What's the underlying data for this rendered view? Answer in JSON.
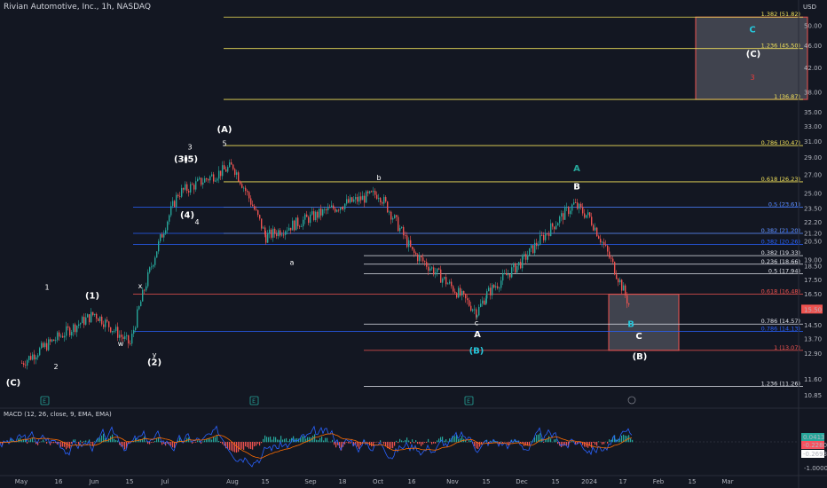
{
  "header": {
    "title": "Rivian Automotive, Inc., 1h, NASDAQ",
    "currency": "USD"
  },
  "macd": {
    "label": "MACD (12, 26, close, 9, EMA, EMA)",
    "badges": [
      {
        "text": "0.0413",
        "color": "#26a69a"
      },
      {
        "text": "-0.2280",
        "color": "#f7525f"
      },
      {
        "text": "-0.2693",
        "color": "#ffffff"
      }
    ]
  },
  "colors": {
    "background": "#131722",
    "up": "#26a69a",
    "down": "#ef5350",
    "fib_yellow": "#f0e05a",
    "fib_blue": "#2962ff",
    "fib_white": "#e0e3eb",
    "fib_red": "#ef5350",
    "wave_cyan": "#26c6da",
    "wave_red": "#ef3b3b",
    "macd_line": "#2962ff",
    "signal_line": "#ff6d00"
  },
  "chart_data": {
    "type": "line",
    "title": "Rivian Automotive, Inc., 1h, NASDAQ",
    "y_axis": {
      "ticks": [
        10.85,
        11.6,
        12.9,
        13.7,
        14.5,
        15.5,
        16.5,
        17.5,
        18.5,
        19.0,
        20.5,
        21.2,
        22.2,
        23.5,
        25.0,
        27.0,
        29.0,
        31.0,
        33.0,
        35.0,
        38.0,
        42.0,
        46.0,
        50.0
      ],
      "scale": "log",
      "ylim": [
        10.6,
        54
      ]
    },
    "x_axis": {
      "ticks": [
        "May",
        "16",
        "Jun",
        "15",
        "Jul",
        "Aug",
        "15",
        "Sep",
        "18",
        "Oct",
        "16",
        "Nov",
        "15",
        "Dec",
        "15",
        "2024",
        "17",
        "Feb",
        "15",
        "Mar"
      ]
    },
    "last_price": 15.5,
    "price_path": [
      {
        "x": "May",
        "y": 12.4
      },
      {
        "x": "Jun",
        "y": 15.2
      },
      {
        "x": "Jun 15",
        "y": 13.4
      },
      {
        "x": "Jul",
        "y": 25.0
      },
      {
        "x": "Aug",
        "y": 28.0
      },
      {
        "x": "Aug 15",
        "y": 20.9
      },
      {
        "x": "Sep 18",
        "y": 23.9
      },
      {
        "x": "Oct",
        "y": 25.0
      },
      {
        "x": "Oct 16",
        "y": 19.6
      },
      {
        "x": "Nov",
        "y": 15.3
      },
      {
        "x": "Nov 15",
        "y": 16.5
      },
      {
        "x": "Dec",
        "y": 18.9
      },
      {
        "x": "Dec 15",
        "y": 23.9
      },
      {
        "x": "2024",
        "y": 22.6
      },
      {
        "x": "Jan 17",
        "y": 15.5
      }
    ],
    "fib_levels": [
      {
        "label": "1.382 (51.82)",
        "value": 51.82,
        "color": "#f0e05a",
        "group": "top"
      },
      {
        "label": "1.236 (45.50)",
        "value": 45.5,
        "color": "#f0e05a",
        "group": "top"
      },
      {
        "label": "1 (36.87)",
        "value": 36.87,
        "color": "#f0e05a",
        "group": "top"
      },
      {
        "label": "0.786 (30.47)",
        "value": 30.47,
        "color": "#f0e05a",
        "group": "top"
      },
      {
        "label": "0.618 (26.23)",
        "value": 26.23,
        "color": "#f0e05a",
        "group": "top"
      },
      {
        "label": "0.5 (23.61)",
        "value": 23.61,
        "color": "#f0e05a",
        "group": "top"
      },
      {
        "label": "0.382 (21.20)",
        "value": 21.2,
        "color": "#f0e05a",
        "group": "top"
      },
      {
        "label": "0.5 (23.61)",
        "value": 23.61,
        "color": "#2962ff",
        "group": "blue"
      },
      {
        "label": "0.382 (21.20)",
        "value": 21.2,
        "color": "#2962ff",
        "group": "blue"
      },
      {
        "label": "0.382 (20.26)",
        "value": 20.26,
        "color": "#2962ff",
        "group": "blue"
      },
      {
        "label": "0.618 (16.48)",
        "value": 16.48,
        "color": "#ef5350",
        "group": "blue"
      },
      {
        "label": "0.786 (14.13)",
        "value": 14.13,
        "color": "#2962ff",
        "group": "blue"
      },
      {
        "label": "0.382 (19.33)",
        "value": 19.33,
        "color": "#e0e3eb",
        "group": "white"
      },
      {
        "label": "0.236 (18.66)",
        "value": 18.66,
        "color": "#e0e3eb",
        "group": "white"
      },
      {
        "label": "0.5 (17.94)",
        "value": 17.94,
        "color": "#e0e3eb",
        "group": "white"
      },
      {
        "label": "0.786 (14.57)",
        "value": 14.57,
        "color": "#e0e3eb",
        "group": "white"
      },
      {
        "label": "1 (13.07)",
        "value": 13.07,
        "color": "#ef5350",
        "group": "white"
      },
      {
        "label": "1.236 (11.26)",
        "value": 11.26,
        "color": "#e0e3eb",
        "group": "white"
      }
    ],
    "wave_labels": [
      {
        "text": "(C)",
        "x": "May",
        "y": 11.3,
        "color": "#ffffff"
      },
      {
        "text": "1",
        "x": "May 16",
        "y": 16.8,
        "color": "#ffffff"
      },
      {
        "text": "2",
        "x": "May 16",
        "y": 12.1,
        "color": "#ffffff"
      },
      {
        "text": "(1)",
        "x": "Jun",
        "y": 16.2,
        "color": "#ffffff"
      },
      {
        "text": "w",
        "x": "Jun 15",
        "y": 13.3,
        "color": "#ffffff"
      },
      {
        "text": "x",
        "x": "Jun 15",
        "y": 16.9,
        "color": "#ffffff"
      },
      {
        "text": "y",
        "x": "Jun 15",
        "y": 12.7,
        "color": "#ffffff"
      },
      {
        "text": "(2)",
        "x": "Jun 15",
        "y": 12.3,
        "color": "#ffffff"
      },
      {
        "text": "(3)",
        "x": "Jul",
        "y": 28.5,
        "color": "#ffffff"
      },
      {
        "text": "3",
        "x": "Jul",
        "y": 30.0,
        "color": "#ffffff"
      },
      {
        "text": "(5)",
        "x": "Jul",
        "y": 28.5,
        "color": "#ffffff"
      },
      {
        "text": "(4)",
        "x": "Jul",
        "y": 22.6,
        "color": "#ffffff"
      },
      {
        "text": "4",
        "x": "Jul",
        "y": 22.0,
        "color": "#ffffff"
      },
      {
        "text": "5",
        "x": "Aug",
        "y": 30.4,
        "color": "#ffffff"
      },
      {
        "text": "(A)",
        "x": "Aug",
        "y": 32.2,
        "color": "#ffffff"
      },
      {
        "text": "a",
        "x": "Sep",
        "y": 18.6,
        "color": "#ffffff"
      },
      {
        "text": "b",
        "x": "Oct",
        "y": 26.4,
        "color": "#ffffff"
      },
      {
        "text": "c",
        "x": "Nov",
        "y": 14.5,
        "color": "#ffffff"
      },
      {
        "text": "A",
        "x": "Nov",
        "y": 13.8,
        "color": "#ffffff"
      },
      {
        "text": "(B)",
        "x": "Nov",
        "y": 12.9,
        "color": "#26c6da"
      },
      {
        "text": "A",
        "x": "Dec 15",
        "y": 27.4,
        "color": "#26a69a"
      },
      {
        "text": "B",
        "x": "Dec 15",
        "y": 25.4,
        "color": "#ffffff"
      },
      {
        "text": "B",
        "x": "Jan 17",
        "y": 14.4,
        "color": "#26c6da"
      },
      {
        "text": "C",
        "x": "Jan 17",
        "y": 13.7,
        "color": "#ffffff"
      },
      {
        "text": "(B)",
        "x": "Jan 17",
        "y": 12.6,
        "color": "#ffffff"
      },
      {
        "text": "C",
        "x": "Feb 15",
        "y": 48.6,
        "color": "#26c6da"
      },
      {
        "text": "(C)",
        "x": "Feb 15",
        "y": 44.0,
        "color": "#ffffff"
      },
      {
        "text": "3",
        "x": "Feb 15",
        "y": 40.0,
        "color": "#ef3b3b"
      }
    ],
    "target_boxes": [
      {
        "name": "upper-target",
        "from": "Jan 17",
        "to": "Feb 15",
        "y_low": 36.87,
        "y_high": 51.82
      },
      {
        "name": "lower-target",
        "from": "Jan",
        "to": "Feb",
        "y_low": 13.07,
        "y_high": 16.48
      }
    ],
    "macd": {
      "series": [
        {
          "name": "MACD",
          "color": "#2962ff"
        },
        {
          "name": "Signal",
          "color": "#ff6d00"
        },
        {
          "name": "Histogram",
          "color": "#26a69a"
        }
      ],
      "values_right": [
        -0.2693,
        -0.228,
        0.0413
      ],
      "ticks": [
        -1.0
      ]
    }
  }
}
